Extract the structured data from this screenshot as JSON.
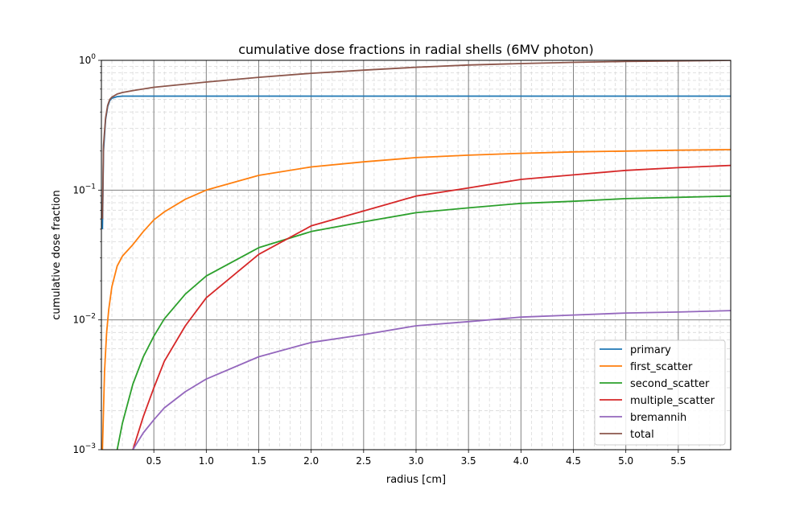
{
  "chart_data": {
    "type": "line",
    "title": "cumulative dose fractions in radial shells (6MV photon)",
    "xlabel": "radius [cm]",
    "ylabel": "cumulative dose fraction",
    "xlim": [
      0,
      6.0
    ],
    "ylim": [
      0.001,
      1.0
    ],
    "yscale": "log",
    "grid": true,
    "legend_position": "lower-right",
    "x_ticks": [
      "0.5",
      "1.0",
      "1.5",
      "2.0",
      "2.5",
      "3.0",
      "3.5",
      "4.0",
      "4.5",
      "5.0",
      "5.5"
    ],
    "x_tick_values": [
      0.5,
      1.0,
      1.5,
      2.0,
      2.5,
      3.0,
      3.5,
      4.0,
      4.5,
      5.0,
      5.5
    ],
    "y_ticks": [
      {
        "value": 0.001,
        "base": "10",
        "exp": "−3"
      },
      {
        "value": 0.01,
        "base": "10",
        "exp": "−2"
      },
      {
        "value": 0.1,
        "base": "10",
        "exp": "−1"
      },
      {
        "value": 1.0,
        "base": "10",
        "exp": "0"
      }
    ],
    "series": [
      {
        "name": "primary",
        "color": "#1f77b4",
        "x": [
          0.01,
          0.02,
          0.04,
          0.06,
          0.08,
          0.1,
          0.15,
          0.2,
          0.5,
          1.0,
          2.0,
          3.0,
          4.0,
          5.0,
          6.0
        ],
        "y": [
          0.05,
          0.2,
          0.35,
          0.44,
          0.49,
          0.51,
          0.525,
          0.53,
          0.53,
          0.53,
          0.53,
          0.53,
          0.53,
          0.53,
          0.53
        ]
      },
      {
        "name": "first_scatter",
        "color": "#ff7f0e",
        "x": [
          0.01,
          0.03,
          0.05,
          0.07,
          0.1,
          0.15,
          0.2,
          0.3,
          0.4,
          0.5,
          0.6,
          0.8,
          1.0,
          1.5,
          2.0,
          2.5,
          3.0,
          3.5,
          4.0,
          4.5,
          5.0,
          5.5,
          6.0
        ],
        "y": [
          0.001,
          0.004,
          0.008,
          0.012,
          0.018,
          0.026,
          0.031,
          0.038,
          0.048,
          0.059,
          0.068,
          0.085,
          0.1,
          0.13,
          0.151,
          0.165,
          0.178,
          0.186,
          0.192,
          0.197,
          0.2,
          0.203,
          0.205
        ]
      },
      {
        "name": "second_scatter",
        "color": "#2ca02c",
        "x": [
          0.15,
          0.2,
          0.3,
          0.4,
          0.5,
          0.6,
          0.8,
          1.0,
          1.5,
          2.0,
          2.5,
          3.0,
          3.5,
          4.0,
          4.5,
          5.0,
          5.5,
          6.0
        ],
        "y": [
          0.001,
          0.0016,
          0.0032,
          0.0052,
          0.0075,
          0.0102,
          0.0158,
          0.0218,
          0.036,
          0.048,
          0.057,
          0.067,
          0.073,
          0.079,
          0.082,
          0.086,
          0.088,
          0.09
        ]
      },
      {
        "name": "multiple_scatter",
        "color": "#d62728",
        "x": [
          0.3,
          0.4,
          0.5,
          0.6,
          0.8,
          1.0,
          1.5,
          2.0,
          2.5,
          3.0,
          3.5,
          4.0,
          4.5,
          5.0,
          5.5,
          6.0
        ],
        "y": [
          0.001,
          0.0018,
          0.003,
          0.0048,
          0.009,
          0.0148,
          0.032,
          0.053,
          0.069,
          0.09,
          0.104,
          0.121,
          0.131,
          0.142,
          0.149,
          0.155
        ]
      },
      {
        "name": "bremannih",
        "color": "#9467bd",
        "x": [
          0.3,
          0.4,
          0.5,
          0.6,
          0.8,
          1.0,
          1.5,
          2.0,
          2.5,
          3.0,
          3.5,
          4.0,
          4.5,
          5.0,
          5.5,
          6.0
        ],
        "y": [
          0.001,
          0.00135,
          0.0017,
          0.0021,
          0.0028,
          0.0035,
          0.0052,
          0.0067,
          0.0077,
          0.009,
          0.0097,
          0.0105,
          0.0109,
          0.0113,
          0.0115,
          0.0118
        ]
      },
      {
        "name": "total",
        "color": "#8c564b",
        "x": [
          0.01,
          0.02,
          0.04,
          0.06,
          0.08,
          0.1,
          0.15,
          0.2,
          0.3,
          0.5,
          1.0,
          1.5,
          2.0,
          2.5,
          3.0,
          3.5,
          4.0,
          4.5,
          5.0,
          5.5,
          6.0
        ],
        "y": [
          0.06,
          0.22,
          0.36,
          0.45,
          0.5,
          0.52,
          0.55,
          0.565,
          0.585,
          0.62,
          0.68,
          0.74,
          0.795,
          0.84,
          0.885,
          0.92,
          0.945,
          0.965,
          0.98,
          0.99,
          1.0
        ]
      }
    ]
  }
}
